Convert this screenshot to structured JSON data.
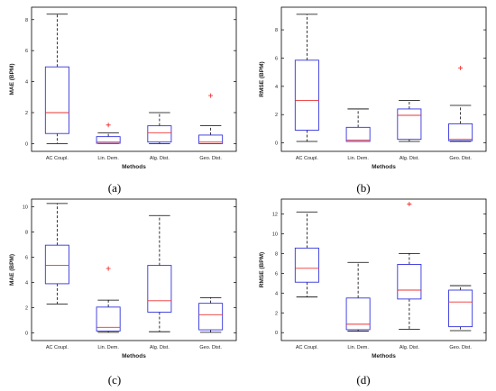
{
  "colors": {
    "box": "#3333dd",
    "median": "#ee3333",
    "whisker": "#000000",
    "outlier": "#ee3333",
    "frame": "#000000"
  },
  "chart_data": [
    {
      "type": "boxplot",
      "panel_label": "(a)",
      "xlabel": "Methods",
      "ylabel": "MAE (BPM)",
      "categories": [
        "AC Coupl.",
        "Lin. Dem.",
        "Alg. Dist.",
        "Geo. Dist."
      ],
      "ylim": [
        -0.5,
        8.8
      ],
      "yticks": [
        0,
        2,
        4,
        6,
        8
      ],
      "boxes": [
        {
          "min": 0,
          "q1": 0.65,
          "median": 2.0,
          "q3": 4.95,
          "max": 8.35,
          "outliers": []
        },
        {
          "min": 0,
          "q1": 0.02,
          "median": 0.1,
          "q3": 0.45,
          "max": 0.7,
          "outliers": [
            1.2
          ]
        },
        {
          "min": 0,
          "q1": 0.1,
          "median": 0.7,
          "q3": 1.15,
          "max": 2.0,
          "outliers": []
        },
        {
          "min": 0,
          "q1": 0.0,
          "median": 0.1,
          "q3": 0.55,
          "max": 1.15,
          "outliers": [
            3.1
          ]
        }
      ]
    },
    {
      "type": "boxplot",
      "panel_label": "(b)",
      "xlabel": "Methods",
      "ylabel": "RMSE (BPM)",
      "categories": [
        "AC Coupl.",
        "Lin. Dem.",
        "Alg. Dist.",
        "Geo. Dist."
      ],
      "ylim": [
        -0.6,
        9.6
      ],
      "yticks": [
        0,
        2,
        4,
        6,
        8
      ],
      "boxes": [
        {
          "min": 0.1,
          "q1": 0.9,
          "median": 3.0,
          "q3": 5.85,
          "max": 9.1,
          "outliers": []
        },
        {
          "min": 0.1,
          "q1": 0.1,
          "median": 0.2,
          "q3": 1.1,
          "max": 2.4,
          "outliers": []
        },
        {
          "min": 0.1,
          "q1": 0.25,
          "median": 1.95,
          "q3": 2.4,
          "max": 3.0,
          "outliers": []
        },
        {
          "min": 0.1,
          "q1": 0.15,
          "median": 0.25,
          "q3": 1.35,
          "max": 2.65,
          "outliers": [
            5.3
          ]
        }
      ]
    },
    {
      "type": "boxplot",
      "panel_label": "(c)",
      "xlabel": "Methods",
      "ylabel": "MAE (BPM)",
      "categories": [
        "AC Coupl.",
        "Lin. Dem.",
        "Alg. Dist.",
        "Geo. Dist."
      ],
      "ylim": [
        -0.6,
        10.6
      ],
      "yticks": [
        0,
        2,
        4,
        6,
        8,
        10
      ],
      "boxes": [
        {
          "min": 2.3,
          "q1": 3.9,
          "median": 5.35,
          "q3": 6.95,
          "max": 10.25,
          "outliers": []
        },
        {
          "min": 0.05,
          "q1": 0.15,
          "median": 0.45,
          "q3": 2.05,
          "max": 2.6,
          "outliers": [
            5.1
          ]
        },
        {
          "min": 0.1,
          "q1": 1.65,
          "median": 2.55,
          "q3": 5.35,
          "max": 9.3,
          "outliers": []
        },
        {
          "min": 0.05,
          "q1": 0.25,
          "median": 1.45,
          "q3": 2.35,
          "max": 2.8,
          "outliers": []
        }
      ]
    },
    {
      "type": "boxplot",
      "panel_label": "(d)",
      "xlabel": "Methods",
      "ylabel": "RMSE (BPM)",
      "categories": [
        "AC Coupl.",
        "Lin. Dem.",
        "Alg. Dist.",
        "Geo. Dist."
      ],
      "ylim": [
        -0.8,
        13.5
      ],
      "yticks": [
        0,
        2,
        4,
        6,
        8,
        10,
        12
      ],
      "boxes": [
        {
          "min": 3.6,
          "q1": 5.1,
          "median": 6.5,
          "q3": 8.55,
          "max": 12.2,
          "outliers": []
        },
        {
          "min": 0.15,
          "q1": 0.3,
          "median": 0.85,
          "q3": 3.5,
          "max": 7.1,
          "outliers": []
        },
        {
          "min": 0.35,
          "q1": 3.4,
          "median": 4.3,
          "q3": 6.9,
          "max": 8.0,
          "outliers": [
            13.0
          ]
        },
        {
          "min": 0.2,
          "q1": 0.6,
          "median": 3.1,
          "q3": 4.3,
          "max": 4.75,
          "outliers": []
        }
      ]
    }
  ]
}
